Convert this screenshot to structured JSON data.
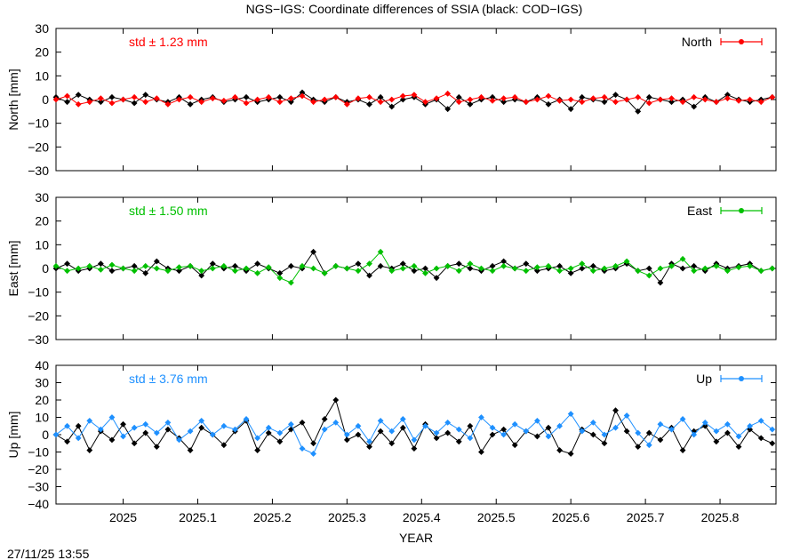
{
  "figure": {
    "title": "NGS−IGS: Coordinate differences of SSIA (black: COD−IGS)",
    "xlabel": "YEAR",
    "timestamp": "27/11/25 13:55"
  },
  "colors": {
    "north": "#ff0000",
    "east": "#00c000",
    "up": "#1e90ff",
    "reference": "#000000"
  },
  "chart_data": [
    {
      "type": "line",
      "ylabel": "North [mm]",
      "std_label": "std ± 1.23 mm",
      "legend_label": "North",
      "legend_position": "top-right",
      "color": "#ff0000",
      "xlim": [
        2024.91,
        2025.875
      ],
      "ylim": [
        -30,
        30
      ],
      "yticks": [
        -30,
        -20,
        -10,
        0,
        10,
        20,
        30
      ],
      "ytick_labels": [
        "−30",
        "−20",
        "−10",
        "0",
        "10",
        "20",
        "30"
      ],
      "x": [
        2024.91,
        2024.925,
        2024.94,
        2024.955,
        2024.97,
        2024.985,
        2025.0,
        2025.015,
        2025.03,
        2025.045,
        2025.06,
        2025.075,
        2025.09,
        2025.105,
        2025.12,
        2025.135,
        2025.15,
        2025.165,
        2025.18,
        2025.195,
        2025.21,
        2025.225,
        2025.24,
        2025.255,
        2025.27,
        2025.285,
        2025.3,
        2025.315,
        2025.33,
        2025.345,
        2025.36,
        2025.375,
        2025.39,
        2025.405,
        2025.42,
        2025.435,
        2025.45,
        2025.465,
        2025.48,
        2025.495,
        2025.51,
        2025.525,
        2025.54,
        2025.555,
        2025.57,
        2025.585,
        2025.6,
        2025.615,
        2025.63,
        2025.645,
        2025.66,
        2025.675,
        2025.69,
        2025.705,
        2025.72,
        2025.735,
        2025.75,
        2025.765,
        2025.78,
        2025.795,
        2025.81,
        2025.825,
        2025.84,
        2025.855,
        2025.87
      ],
      "series": [
        {
          "name": "North",
          "color": "#ff0000",
          "values": [
            0,
            1.5,
            -2,
            -1,
            0.5,
            -1.5,
            0,
            1,
            -1,
            0.5,
            -2,
            0,
            1,
            -1,
            0.5,
            -0.5,
            1,
            -1.5,
            0,
            1,
            -1,
            0.5,
            1.5,
            -1,
            0,
            1,
            -2,
            0.5,
            1,
            -1,
            0,
            1.5,
            2,
            -1,
            0.5,
            2.5,
            -1,
            0,
            1,
            -0.5,
            0.5,
            1,
            -1,
            0,
            1.5,
            -0.5,
            0,
            -1,
            0.5,
            1,
            -1,
            0,
            1,
            -1.5,
            0,
            0.5,
            -1,
            1,
            0,
            -1,
            0.5,
            -0.5,
            0,
            -1,
            1
          ]
        },
        {
          "name": "",
          "color": "#000000",
          "values": [
            1,
            -1,
            2,
            0,
            -1,
            1,
            0,
            -1.5,
            2,
            0,
            -1,
            1,
            -2,
            0,
            1,
            -1,
            0,
            1,
            -1,
            0,
            1,
            -1,
            3,
            0,
            -1,
            1,
            -1,
            0,
            -2,
            1,
            -3,
            0,
            1,
            -2,
            0,
            -4,
            1,
            -2,
            0,
            1,
            -1,
            0,
            -1,
            1,
            -2,
            0,
            -4,
            1,
            0,
            -1,
            2,
            0,
            -5,
            1,
            0,
            -1,
            0,
            -3,
            1,
            -1,
            2,
            0,
            -1,
            0,
            1
          ]
        }
      ]
    },
    {
      "type": "line",
      "ylabel": "East [mm]",
      "std_label": "std ± 1.50 mm",
      "legend_label": "East",
      "legend_position": "top-right",
      "color": "#00c000",
      "xlim": [
        2024.91,
        2025.875
      ],
      "ylim": [
        -30,
        30
      ],
      "yticks": [
        -30,
        -20,
        -10,
        0,
        10,
        20,
        30
      ],
      "ytick_labels": [
        "−30",
        "−20",
        "−10",
        "0",
        "10",
        "20",
        "30"
      ],
      "x": [
        2024.91,
        2024.925,
        2024.94,
        2024.955,
        2024.97,
        2024.985,
        2025.0,
        2025.015,
        2025.03,
        2025.045,
        2025.06,
        2025.075,
        2025.09,
        2025.105,
        2025.12,
        2025.135,
        2025.15,
        2025.165,
        2025.18,
        2025.195,
        2025.21,
        2025.225,
        2025.24,
        2025.255,
        2025.27,
        2025.285,
        2025.3,
        2025.315,
        2025.33,
        2025.345,
        2025.36,
        2025.375,
        2025.39,
        2025.405,
        2025.42,
        2025.435,
        2025.45,
        2025.465,
        2025.48,
        2025.495,
        2025.51,
        2025.525,
        2025.54,
        2025.555,
        2025.57,
        2025.585,
        2025.6,
        2025.615,
        2025.63,
        2025.645,
        2025.66,
        2025.675,
        2025.69,
        2025.705,
        2025.72,
        2025.735,
        2025.75,
        2025.765,
        2025.78,
        2025.795,
        2025.81,
        2025.825,
        2025.84,
        2025.855,
        2025.87
      ],
      "series": [
        {
          "name": "East",
          "color": "#00c000",
          "values": [
            1,
            -1,
            0,
            1,
            -0.5,
            1.5,
            0,
            -1,
            1,
            0,
            -1,
            0.5,
            1,
            -1,
            0,
            1,
            -1,
            0,
            -2,
            0.5,
            -4,
            -6,
            1,
            0,
            -2,
            1,
            0,
            -1,
            2,
            7,
            -1,
            0,
            1,
            -2,
            0,
            1,
            -1,
            2,
            0,
            -1,
            1,
            0,
            -1,
            0.5,
            1,
            -1,
            0,
            2,
            -1,
            0,
            1,
            3,
            -1,
            -3,
            0,
            1,
            4,
            -1,
            0,
            1,
            -1,
            0.5,
            1,
            -1,
            0
          ]
        },
        {
          "name": "",
          "color": "#000000",
          "values": [
            0,
            2,
            -1,
            0,
            2,
            -1,
            0,
            1,
            -2,
            3,
            0,
            -1,
            1,
            -3,
            2,
            0,
            1,
            -1,
            2,
            0,
            -2,
            1,
            0,
            7,
            -2,
            1,
            0,
            2,
            -3,
            1,
            0,
            2,
            -1,
            0,
            -4,
            1,
            2,
            0,
            -1,
            1,
            3,
            0,
            2,
            -1,
            0,
            1,
            -2,
            0,
            1,
            -1,
            0,
            2,
            -1,
            0,
            -6,
            2,
            0,
            1,
            -1,
            2,
            0,
            1,
            2,
            -1,
            0
          ]
        }
      ]
    },
    {
      "type": "line",
      "ylabel": "Up [mm]",
      "std_label": "std ± 3.76 mm",
      "legend_label": "Up",
      "legend_position": "top-right",
      "color": "#1e90ff",
      "xlim": [
        2024.91,
        2025.875
      ],
      "ylim": [
        -40,
        40
      ],
      "yticks": [
        -40,
        -30,
        -20,
        -10,
        0,
        10,
        20,
        30,
        40
      ],
      "ytick_labels": [
        "−40",
        "−30",
        "−20",
        "−10",
        "0",
        "10",
        "20",
        "30",
        "40"
      ],
      "x": [
        2024.91,
        2024.925,
        2024.94,
        2024.955,
        2024.97,
        2024.985,
        2025.0,
        2025.015,
        2025.03,
        2025.045,
        2025.06,
        2025.075,
        2025.09,
        2025.105,
        2025.12,
        2025.135,
        2025.15,
        2025.165,
        2025.18,
        2025.195,
        2025.21,
        2025.225,
        2025.24,
        2025.255,
        2025.27,
        2025.285,
        2025.3,
        2025.315,
        2025.33,
        2025.345,
        2025.36,
        2025.375,
        2025.39,
        2025.405,
        2025.42,
        2025.435,
        2025.45,
        2025.465,
        2025.48,
        2025.495,
        2025.51,
        2025.525,
        2025.54,
        2025.555,
        2025.57,
        2025.585,
        2025.6,
        2025.615,
        2025.63,
        2025.645,
        2025.66,
        2025.675,
        2025.69,
        2025.705,
        2025.72,
        2025.735,
        2025.75,
        2025.765,
        2025.78,
        2025.795,
        2025.81,
        2025.825,
        2025.84,
        2025.855,
        2025.87
      ],
      "series": [
        {
          "name": "Up",
          "color": "#1e90ff",
          "values": [
            0,
            5,
            -2,
            8,
            3,
            10,
            -1,
            4,
            6,
            1,
            7,
            -3,
            2,
            8,
            0,
            5,
            3,
            9,
            -2,
            4,
            1,
            6,
            -8,
            -11,
            3,
            7,
            0,
            5,
            -4,
            8,
            2,
            9,
            -3,
            5,
            1,
            7,
            3,
            -2,
            10,
            4,
            0,
            6,
            2,
            8,
            -1,
            5,
            12,
            2,
            7,
            0,
            4,
            11,
            1,
            -6,
            6,
            3,
            9,
            0,
            7,
            2,
            6,
            -1,
            5,
            8,
            3
          ]
        },
        {
          "name": "",
          "color": "#000000",
          "values": [
            0,
            -4,
            5,
            -9,
            2,
            -3,
            6,
            -5,
            1,
            -7,
            3,
            -2,
            -9,
            4,
            0,
            -6,
            2,
            8,
            -9,
            1,
            -4,
            3,
            7,
            -5,
            9,
            20,
            -3,
            0,
            -7,
            2,
            -5,
            4,
            -8,
            6,
            -2,
            1,
            -4,
            5,
            -10,
            0,
            3,
            -6,
            2,
            -1,
            4,
            -9,
            -11,
            3,
            0,
            -5,
            14,
            2,
            -7,
            1,
            -3,
            4,
            -9,
            2,
            5,
            -4,
            1,
            -7,
            3,
            -2,
            -5
          ]
        }
      ]
    }
  ],
  "x_axis": {
    "ticks": [
      2025,
      2025.1,
      2025.2,
      2025.3,
      2025.4,
      2025.5,
      2025.6,
      2025.7,
      2025.8
    ],
    "tick_labels": [
      "2025",
      "2025.1",
      "2025.2",
      "2025.3",
      "2025.4",
      "2025.5",
      "2025.6",
      "2025.7",
      "2025.8"
    ]
  }
}
